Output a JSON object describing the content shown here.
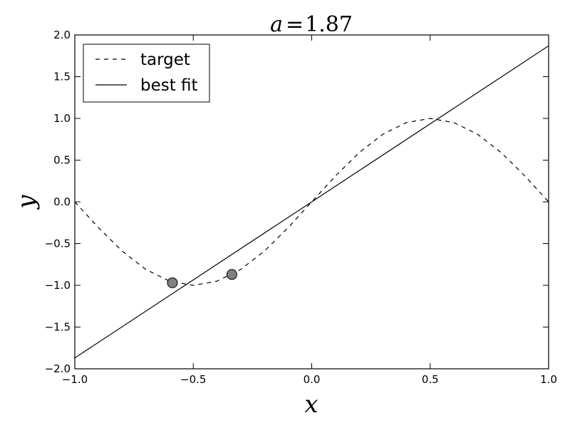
{
  "chart_data": {
    "type": "line",
    "title": {
      "var": "a",
      "eq": "=",
      "value": "1.87"
    },
    "xlabel": "x",
    "ylabel": "y",
    "xlim": [
      -1.0,
      1.0
    ],
    "ylim": [
      -2.0,
      2.0
    ],
    "grid": false,
    "legend_placement": "top-left",
    "x_ticks": [
      -1.0,
      -0.5,
      0.0,
      0.5,
      1.0
    ],
    "y_ticks": [
      -2.0,
      -1.5,
      -1.0,
      -0.5,
      0.0,
      0.5,
      1.0,
      1.5,
      2.0
    ],
    "x_tick_labels": [
      "−1.0",
      "−0.5",
      "0.0",
      "0.5",
      "1.0"
    ],
    "y_tick_labels": [
      "−2.0",
      "−1.5",
      "−1.0",
      "−0.5",
      "0.0",
      "0.5",
      "1.0",
      "1.5",
      "2.0"
    ],
    "series": [
      {
        "name": "target",
        "style": "dashed",
        "color": "#000000",
        "x": [
          -1.0,
          -0.9,
          -0.8,
          -0.7,
          -0.6,
          -0.5,
          -0.4,
          -0.3,
          -0.2,
          -0.1,
          0.0,
          0.1,
          0.2,
          0.3,
          0.4,
          0.5,
          0.6,
          0.7,
          0.8,
          0.9,
          1.0
        ],
        "y": [
          0.0,
          -0.31,
          -0.59,
          -0.81,
          -0.95,
          -1.0,
          -0.95,
          -0.81,
          -0.59,
          -0.31,
          0.0,
          0.31,
          0.59,
          0.81,
          0.95,
          1.0,
          0.95,
          0.81,
          0.59,
          0.31,
          0.0
        ]
      },
      {
        "name": "best fit",
        "style": "solid",
        "color": "#000000",
        "x": [
          -1.0,
          1.0
        ],
        "y": [
          -1.87,
          1.87
        ]
      }
    ],
    "points": {
      "color": "#808080",
      "x": [
        -0.588,
        -0.337
      ],
      "y": [
        -0.97,
        -0.87
      ]
    }
  }
}
